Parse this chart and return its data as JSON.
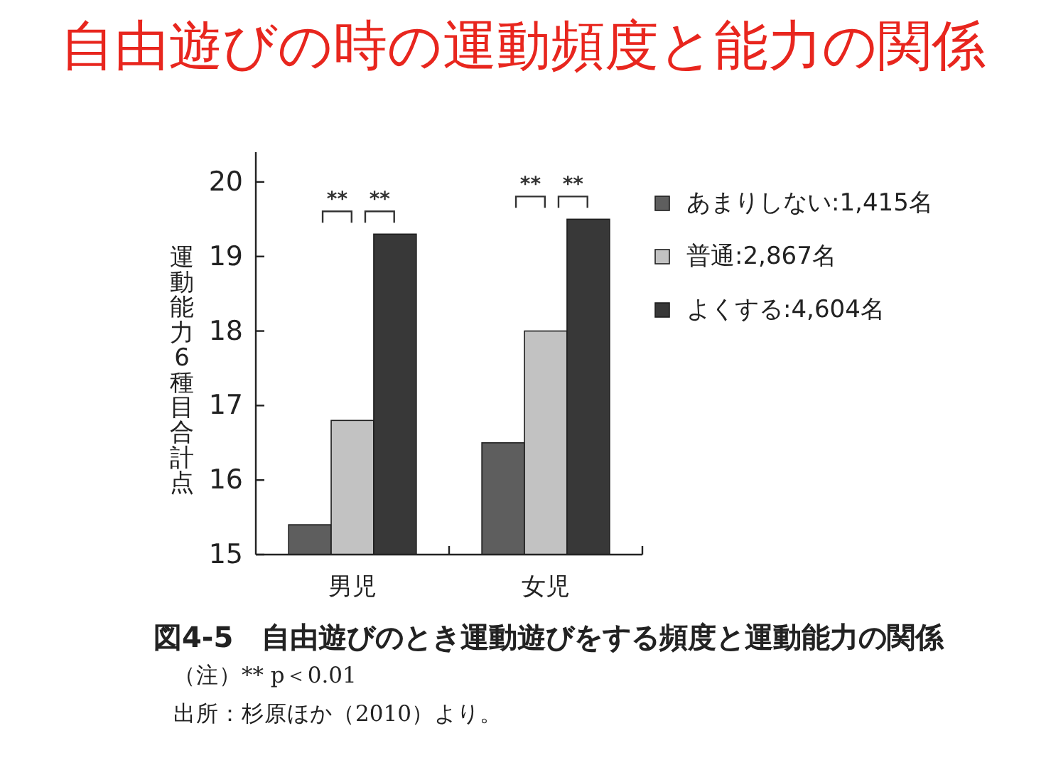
{
  "chart_data": {
    "type": "bar",
    "title": "自由遊びの時の運動頻度と能力の関係",
    "ylabel": "運動能力6種目合計点",
    "categories": [
      "男児",
      "女児"
    ],
    "series": [
      {
        "name": "あまりしない:1,415名",
        "color": "#5e5e5e",
        "values": [
          15.4,
          16.5
        ]
      },
      {
        "name": "普通:2,867名",
        "color": "#c2c2c2",
        "values": [
          16.8,
          18.0
        ]
      },
      {
        "name": "よくする:4,604名",
        "color": "#383838",
        "values": [
          19.3,
          19.5
        ]
      }
    ],
    "ylim": [
      15,
      20.4
    ],
    "yticks": [
      15,
      16,
      17,
      18,
      19,
      20
    ],
    "legend": "top right",
    "annotations": [
      "**",
      "**",
      "**",
      "**",
      "図4-5　自由遊びのとき運動遊びをする頻度と運動能力の関係",
      "（注）** p＜0.01",
      "出所：杉原ほか（2010）より。"
    ]
  }
}
